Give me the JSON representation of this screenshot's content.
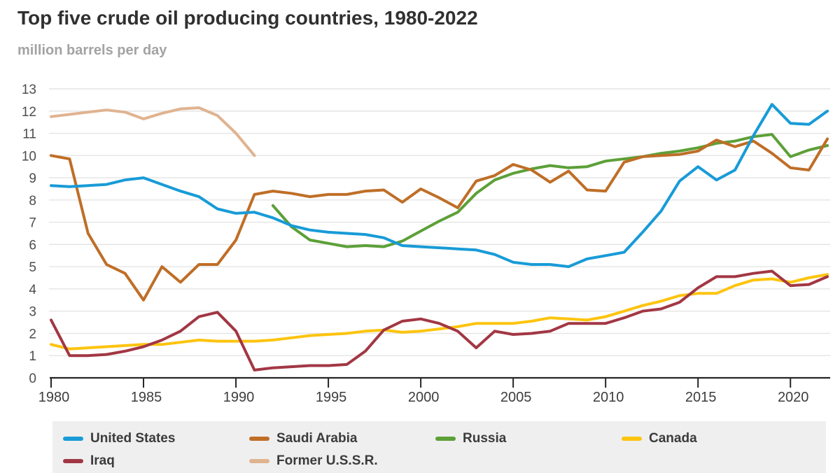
{
  "header": {
    "title": "Top five crude oil producing countries, 1980-2022",
    "subtitle": "million barrels per day"
  },
  "colors": {
    "axis": "#262626",
    "grid": "#e4e4e4",
    "legend_bg": "#efefef",
    "title_text": "#303030",
    "subtitle_text": "#a3a3a3"
  },
  "chart_data": {
    "type": "line",
    "title": "Top five crude oil producing countries, 1980-2022",
    "ylabel": "million barrels per day",
    "xlabel": "",
    "ylim": [
      0,
      13
    ],
    "x_range": [
      1980,
      2022
    ],
    "y_ticks": [
      0,
      1,
      2,
      3,
      4,
      5,
      6,
      7,
      8,
      9,
      10,
      11,
      12,
      13
    ],
    "x_ticks": [
      1980,
      1985,
      1990,
      1995,
      2000,
      2005,
      2010,
      2015,
      2020
    ],
    "grid": "horizontal",
    "legend_position": "bottom",
    "z_order": [
      5,
      3,
      4,
      2,
      1,
      0
    ],
    "series": [
      {
        "name": "United States",
        "color": "#189bd7",
        "start_year": 1980,
        "values": [
          8.65,
          8.6,
          8.65,
          8.7,
          8.9,
          9.0,
          8.7,
          8.4,
          8.15,
          7.6,
          7.4,
          7.45,
          7.2,
          6.85,
          6.65,
          6.55,
          6.5,
          6.45,
          6.3,
          5.95,
          5.9,
          5.85,
          5.8,
          5.75,
          5.55,
          5.2,
          5.1,
          5.1,
          5.0,
          5.35,
          5.5,
          5.65,
          6.55,
          7.5,
          8.85,
          9.5,
          8.9,
          9.35,
          10.9,
          12.3,
          11.45,
          11.4,
          12.0
        ]
      },
      {
        "name": "Saudi Arabia",
        "color": "#bf6e27",
        "start_year": 1980,
        "values": [
          10.0,
          9.85,
          6.5,
          5.1,
          4.7,
          3.5,
          5.0,
          4.3,
          5.1,
          5.1,
          6.2,
          8.25,
          8.4,
          8.3,
          8.15,
          8.25,
          8.25,
          8.4,
          8.45,
          7.9,
          8.5,
          8.1,
          7.65,
          8.85,
          9.1,
          9.6,
          9.35,
          8.8,
          9.3,
          8.45,
          8.4,
          9.7,
          9.95,
          10.0,
          10.05,
          10.2,
          10.7,
          10.4,
          10.65,
          10.1,
          9.45,
          9.35,
          10.75
        ]
      },
      {
        "name": "Russia",
        "color": "#5ca038",
        "start_year": 1992,
        "values": [
          7.75,
          6.8,
          6.2,
          6.05,
          5.9,
          5.95,
          5.9,
          6.15,
          6.6,
          7.05,
          7.45,
          8.3,
          8.9,
          9.2,
          9.4,
          9.55,
          9.45,
          9.5,
          9.75,
          9.85,
          9.95,
          10.1,
          10.2,
          10.35,
          10.55,
          10.65,
          10.85,
          10.95,
          9.95,
          10.25,
          10.45
        ]
      },
      {
        "name": "Canada",
        "color": "#fdc40f",
        "start_year": 1980,
        "values": [
          1.5,
          1.3,
          1.35,
          1.4,
          1.45,
          1.5,
          1.5,
          1.6,
          1.7,
          1.65,
          1.65,
          1.65,
          1.7,
          1.8,
          1.9,
          1.95,
          2.0,
          2.1,
          2.15,
          2.05,
          2.1,
          2.2,
          2.3,
          2.45,
          2.45,
          2.45,
          2.55,
          2.7,
          2.65,
          2.6,
          2.75,
          3.0,
          3.25,
          3.45,
          3.7,
          3.8,
          3.8,
          4.15,
          4.4,
          4.45,
          4.3,
          4.5,
          4.65
        ]
      },
      {
        "name": "Iraq",
        "color": "#a23744",
        "start_year": 1980,
        "values": [
          2.6,
          1.0,
          1.0,
          1.05,
          1.2,
          1.4,
          1.7,
          2.1,
          2.75,
          2.95,
          2.1,
          0.35,
          0.45,
          0.5,
          0.55,
          0.55,
          0.6,
          1.2,
          2.15,
          2.55,
          2.65,
          2.45,
          2.1,
          1.35,
          2.1,
          1.95,
          2.0,
          2.1,
          2.45,
          2.45,
          2.45,
          2.7,
          3.0,
          3.1,
          3.4,
          4.05,
          4.55,
          4.55,
          4.7,
          4.8,
          4.15,
          4.2,
          4.55
        ]
      },
      {
        "name": "Former U.S.S.R.",
        "color": "#e0b390",
        "start_year": 1980,
        "values": [
          11.75,
          11.85,
          11.95,
          12.05,
          11.95,
          11.65,
          11.9,
          12.1,
          12.15,
          11.8,
          11.0,
          10.0
        ]
      }
    ]
  }
}
